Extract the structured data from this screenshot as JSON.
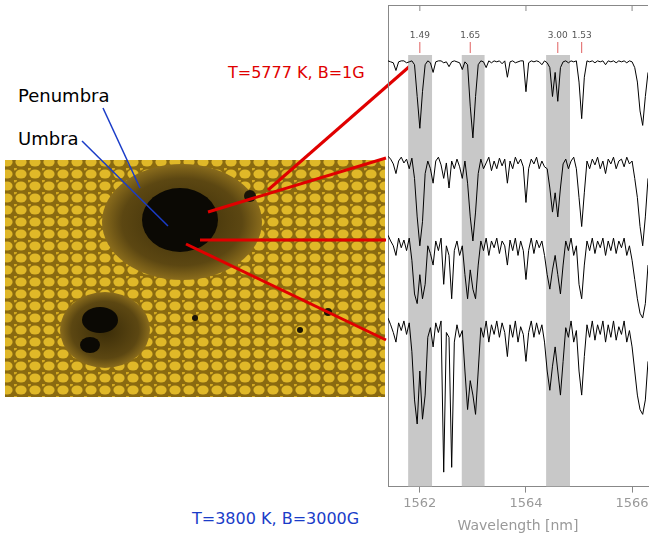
{
  "figure": {
    "penumbra_label": "Penumbra",
    "umbra_label": "Umbra",
    "quiet_sun_label": "T=5777 K, B=1G",
    "umbra_conditions_label": "T=3800 K, B=3000G"
  },
  "chart_data": {
    "type": "line",
    "x_label": "Wavelength [nm]",
    "x": [
      1561.4,
      1561.45,
      1561.5,
      1561.55,
      1561.6,
      1561.65,
      1561.7,
      1561.75,
      1561.8,
      1561.85,
      1561.9,
      1561.95,
      1562,
      1562.05,
      1562.1,
      1562.15,
      1562.2,
      1562.25,
      1562.3,
      1562.35,
      1562.4,
      1562.45,
      1562.5,
      1562.55,
      1562.6,
      1562.65,
      1562.7,
      1562.75,
      1562.8,
      1562.85,
      1562.9,
      1562.95,
      1563,
      1563.05,
      1563.1,
      1563.15,
      1563.2,
      1563.25,
      1563.3,
      1563.35,
      1563.4,
      1563.45,
      1563.5,
      1563.55,
      1563.6,
      1563.65,
      1563.7,
      1563.75,
      1563.8,
      1563.85,
      1563.9,
      1563.95,
      1564,
      1564.05,
      1564.1,
      1564.15,
      1564.2,
      1564.25,
      1564.3,
      1564.35,
      1564.4,
      1564.45,
      1564.5,
      1564.55,
      1564.6,
      1564.65,
      1564.7,
      1564.75,
      1564.8,
      1564.85,
      1564.9,
      1564.95,
      1565,
      1565.05,
      1565.1,
      1565.15,
      1565.2,
      1565.25,
      1565.3,
      1565.35,
      1565.4,
      1565.45,
      1565.5,
      1565.55,
      1565.6,
      1565.65,
      1565.7,
      1565.75,
      1565.8,
      1565.85,
      1565.9,
      1565.95,
      1566,
      1566.05,
      1566.1,
      1566.15,
      1566.2,
      1566.25,
      1566.3
    ],
    "series": [
      {
        "color": "#000000",
        "values": [
          4.42,
          4.41,
          4.4,
          4.32,
          4.41,
          4.42,
          4.42,
          4.4,
          4.41,
          4.42,
          4.38,
          4.05,
          3.72,
          4.1,
          4.38,
          4.42,
          4.4,
          4.3,
          4.41,
          4.42,
          4.42,
          4.4,
          4.41,
          4.36,
          4.41,
          4.42,
          4.41,
          4.4,
          4.33,
          4.41,
          4.38,
          3.95,
          3.62,
          4.05,
          4.38,
          4.42,
          4.41,
          4.35,
          4.42,
          4.4,
          4.42,
          4.41,
          4.42,
          4.39,
          4.42,
          4.25,
          4.41,
          4.42,
          4.4,
          4.41,
          4.42,
          4.42,
          4.1,
          4.4,
          4.42,
          4.41,
          4.42,
          4.41,
          4.38,
          4.42,
          4.4,
          4.35,
          4.05,
          4.3,
          4.0,
          4.35,
          4.41,
          4.42,
          4.4,
          4.42,
          4.41,
          4.42,
          4.2,
          3.82,
          4.25,
          4.42,
          4.41,
          4.42,
          4.4,
          4.42,
          4.41,
          4.42,
          4.38,
          4.42,
          4.41,
          4.42,
          4.4,
          4.42,
          4.41,
          4.42,
          4.4,
          4.42,
          4.41,
          4.35,
          4.2,
          3.9,
          3.75,
          4.05,
          4.3
        ]
      },
      {
        "color": "#000000",
        "values": [
          3.43,
          3.4,
          3.35,
          3.25,
          3.38,
          3.42,
          3.36,
          3.4,
          3.3,
          3.41,
          3.2,
          2.8,
          2.5,
          2.75,
          3.25,
          3.38,
          3.3,
          3.15,
          3.38,
          3.42,
          3.34,
          3.2,
          3.36,
          3.1,
          3.38,
          3.3,
          3.4,
          3.32,
          3.2,
          3.38,
          3.15,
          2.8,
          2.55,
          2.85,
          3.25,
          3.4,
          3.3,
          3.36,
          3.42,
          3.28,
          3.38,
          3.3,
          3.41,
          3.33,
          3.4,
          3.15,
          3.38,
          3.3,
          3.42,
          3.35,
          3.4,
          3.32,
          2.95,
          3.3,
          3.4,
          3.35,
          3.42,
          3.3,
          3.38,
          3.32,
          3.3,
          3.1,
          2.85,
          3.05,
          2.8,
          3.1,
          3.35,
          3.4,
          3.3,
          3.38,
          3.42,
          3.3,
          3.0,
          2.7,
          3.05,
          3.38,
          3.3,
          3.4,
          3.34,
          3.42,
          3.3,
          3.38,
          3.25,
          3.4,
          3.35,
          3.42,
          3.3,
          3.38,
          3.4,
          3.32,
          3.42,
          3.35,
          3.38,
          3.2,
          3.0,
          2.7,
          2.5,
          2.8,
          3.2
        ]
      },
      {
        "color": "#000000",
        "values": [
          2.61,
          2.55,
          2.5,
          2.4,
          2.58,
          2.48,
          2.56,
          2.45,
          2.58,
          2.35,
          2.0,
          1.9,
          2.2,
          1.95,
          2.1,
          2.5,
          2.42,
          2.3,
          2.55,
          2.45,
          2.58,
          2.1,
          2.5,
          2.4,
          1.95,
          2.45,
          2.55,
          2.4,
          2.5,
          2.2,
          1.95,
          2.25,
          2.05,
          1.95,
          2.3,
          2.55,
          2.45,
          2.58,
          2.4,
          2.55,
          2.48,
          2.58,
          2.42,
          2.55,
          2.5,
          2.3,
          2.56,
          2.45,
          2.58,
          2.4,
          2.55,
          2.45,
          2.15,
          2.45,
          2.58,
          2.42,
          2.56,
          2.48,
          2.55,
          2.4,
          2.2,
          2.05,
          2.25,
          2.4,
          2.2,
          2.0,
          2.3,
          2.55,
          2.45,
          2.58,
          2.4,
          2.5,
          2.1,
          1.95,
          2.3,
          2.55,
          2.45,
          2.58,
          2.42,
          2.55,
          2.48,
          2.58,
          2.4,
          2.55,
          2.45,
          2.58,
          2.42,
          2.55,
          2.48,
          2.58,
          2.4,
          2.5,
          2.35,
          2.15,
          1.95,
          1.8,
          1.75,
          1.9,
          2.3
        ]
      },
      {
        "color": "#000000",
        "values": [
          1.75,
          1.68,
          1.6,
          1.5,
          1.7,
          1.62,
          1.72,
          1.58,
          1.7,
          1.4,
          0.9,
          0.65,
          1.2,
          0.7,
          0.95,
          1.55,
          1.65,
          1.45,
          1.7,
          1.6,
          1.72,
          0.15,
          1.6,
          1.55,
          0.2,
          1.5,
          1.68,
          1.55,
          1.62,
          1.2,
          0.8,
          1.1,
          0.95,
          0.75,
          1.2,
          1.65,
          1.55,
          1.72,
          1.5,
          1.68,
          1.58,
          1.72,
          1.55,
          1.7,
          1.6,
          1.35,
          1.68,
          1.55,
          1.72,
          1.5,
          1.66,
          1.58,
          1.3,
          1.6,
          1.72,
          1.55,
          1.7,
          1.58,
          1.68,
          1.5,
          1.2,
          1.0,
          1.25,
          1.45,
          1.2,
          0.95,
          1.3,
          1.65,
          1.55,
          1.72,
          1.5,
          1.62,
          1.2,
          0.95,
          1.35,
          1.68,
          1.55,
          1.72,
          1.52,
          1.68,
          1.58,
          1.72,
          1.5,
          1.68,
          1.55,
          1.72,
          1.52,
          1.66,
          1.58,
          1.72,
          1.5,
          1.62,
          1.45,
          1.2,
          0.95,
          0.8,
          0.75,
          0.9,
          1.3
        ]
      }
    ],
    "xlim": [
      1561.4,
      1566.3
    ],
    "xticks": [
      1562,
      1564,
      1566
    ],
    "ylim": [
      0,
      5
    ],
    "tick_labels": "x",
    "grid": false,
    "bands": [
      [
        1561.78,
        1562.23
      ],
      [
        1562.79,
        1563.22
      ],
      [
        1564.38,
        1564.83
      ]
    ],
    "line_labels": [
      {
        "x": 1562.0,
        "label": "1.49"
      },
      {
        "x": 1562.95,
        "label": "1.65"
      },
      {
        "x": 1564.6,
        "label": "3.00"
      },
      {
        "x": 1565.05,
        "label": "1.53"
      }
    ]
  }
}
